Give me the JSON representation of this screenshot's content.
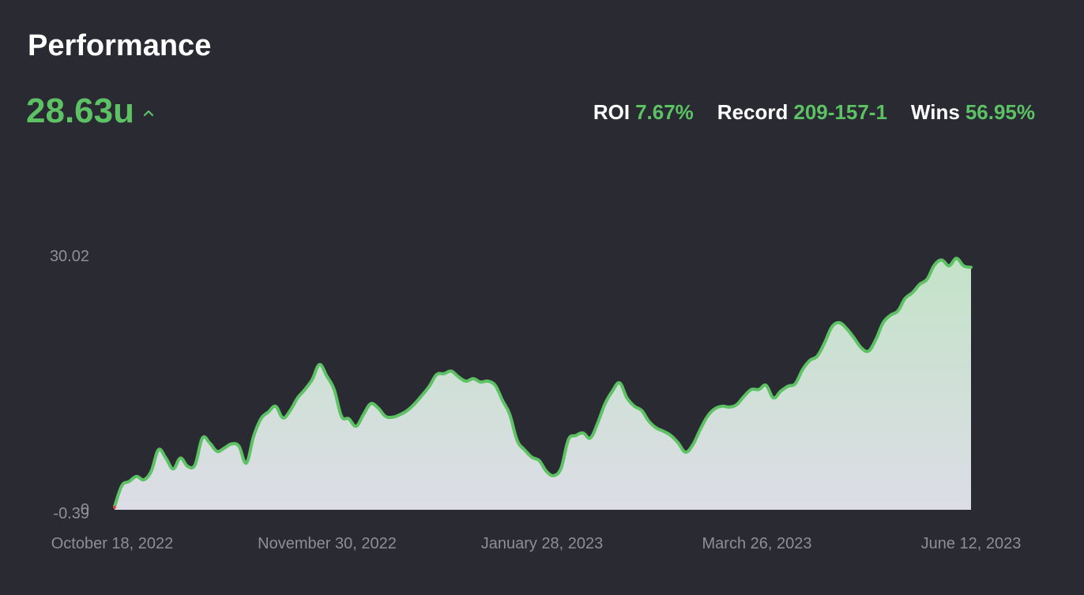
{
  "header": {
    "title": "Performance",
    "total_value": "28.63u"
  },
  "stats": [
    {
      "label": "ROI",
      "value": "7.67%"
    },
    {
      "label": "Record",
      "value": "209-157-1"
    },
    {
      "label": "Wins",
      "value": "56.95%"
    }
  ],
  "colors": {
    "background": "#2a2a33",
    "accent": "#5cc264",
    "axis_text": "#8e8e95",
    "fill_top": "#c4e3c8",
    "fill_bottom": "#dcdde6",
    "start_marker": "#e0473a"
  },
  "icons": {
    "trend": "chevron-up-icon"
  },
  "chart_data": {
    "type": "area",
    "title": "",
    "xlabel": "",
    "ylabel": "",
    "x_tick_labels": [
      "October 18, 2022",
      "November 30, 2022",
      "January 28, 2023",
      "March 26, 2023",
      "June 12, 2023"
    ],
    "y_tick_labels": [
      "30.02",
      "-0.39",
      "0"
    ],
    "ylim": [
      -0.39,
      30.02
    ],
    "grid": false,
    "legend": "none",
    "series": [
      {
        "values": [
          0,
          2.5,
          3,
          3.6,
          3.2,
          4.2,
          6.8,
          5.8,
          4.5,
          5.8,
          4.8,
          5,
          8.2,
          7.6,
          6.6,
          7,
          7.5,
          7.2,
          5.2,
          8.4,
          10.5,
          11.3,
          12,
          10.6,
          11.5,
          13,
          14,
          15.2,
          17,
          15.6,
          14,
          10.8,
          10.5,
          9.6,
          11,
          12.3,
          11.8,
          10.8,
          10.7,
          11,
          11.5,
          12.3,
          13.3,
          14.4,
          15.8,
          15.9,
          16.2,
          15.5,
          15,
          15.3,
          14.9,
          15,
          14.5,
          12.7,
          11,
          7.9,
          6.8,
          5.9,
          5.5,
          4.2,
          3.7,
          4.6,
          8,
          8.5,
          8.8,
          8.2,
          10,
          12.3,
          13.8,
          14.8,
          13,
          12,
          11.5,
          10.2,
          9.4,
          9,
          8.5,
          7.6,
          6.5,
          7.4,
          9.2,
          10.8,
          11.7,
          12,
          11.9,
          12.2,
          13.2,
          14,
          14,
          14.5,
          13,
          13.8,
          14.4,
          14.7,
          16.4,
          17.5,
          18,
          19.6,
          21.5,
          22,
          21.3,
          20.2,
          19,
          18.6,
          20,
          22,
          22.9,
          23.4,
          24.9,
          25.6,
          26.6,
          27.2,
          28.9,
          29.5,
          28.8,
          29.7,
          28.8,
          28.63
        ]
      }
    ]
  }
}
